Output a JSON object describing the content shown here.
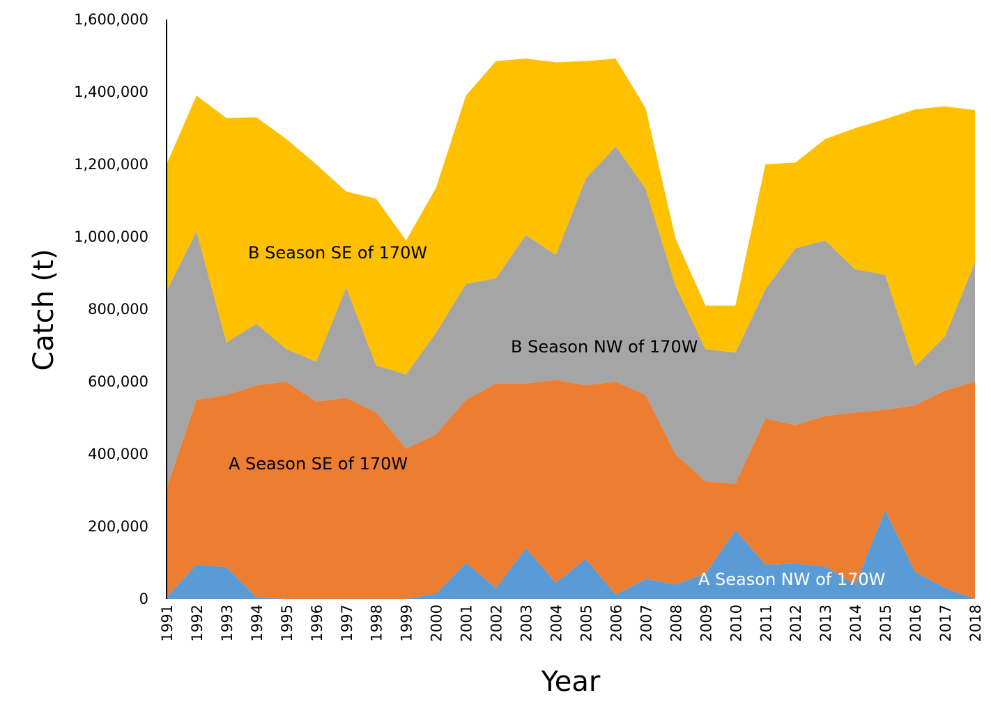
{
  "chart_data": {
    "type": "area",
    "stacked": true,
    "title": "",
    "xlabel": "Year",
    "ylabel": "Catch (t)",
    "ylim": [
      0,
      1600000
    ],
    "yticks": [
      0,
      200000,
      400000,
      600000,
      800000,
      1000000,
      1200000,
      1400000,
      1600000
    ],
    "ytick_labels": [
      "0",
      "200,000",
      "400,000",
      "600,000",
      "800,000",
      "1,000,000",
      "1,200,000",
      "1,400,000",
      "1,600,000"
    ],
    "grid": false,
    "legend": "none (series labeled inside areas)",
    "categories": [
      "1991",
      "1992",
      "1993",
      "1994",
      "1995",
      "1996",
      "1997",
      "1998",
      "1999",
      "2000",
      "2001",
      "2002",
      "2003",
      "2004",
      "2005",
      "2006",
      "2007",
      "2008",
      "2009",
      "2010",
      "2011",
      "2012",
      "2013",
      "2014",
      "2015",
      "2016",
      "2017",
      "2018"
    ],
    "series": [
      {
        "name": "A Season NW of 170W",
        "color": "#5B9BD5",
        "label_color": "#ffffff",
        "values": [
          5000,
          95000,
          88000,
          5000,
          0,
          0,
          0,
          0,
          0,
          15000,
          100000,
          30000,
          140000,
          45000,
          110000,
          12000,
          55000,
          40000,
          70000,
          190000,
          95000,
          97000,
          90000,
          40000,
          245000,
          75000,
          30000,
          0
        ]
      },
      {
        "name": "A Season SE of 170W",
        "color": "#ED7D31",
        "label_color": "#000000",
        "values": [
          300000,
          455000,
          475000,
          585000,
          600000,
          545000,
          555000,
          515000,
          415000,
          440000,
          450000,
          565000,
          455000,
          560000,
          480000,
          588000,
          508000,
          360000,
          255000,
          128000,
          403000,
          383000,
          415000,
          475000,
          277000,
          460000,
          545000,
          600000
        ]
      },
      {
        "name": "B Season NW of 170W",
        "color": "#A5A5A5",
        "label_color": "#000000",
        "values": [
          545000,
          465000,
          145000,
          170000,
          90000,
          110000,
          305000,
          130000,
          205000,
          280000,
          320000,
          290000,
          410000,
          345000,
          570000,
          650000,
          570000,
          465000,
          365000,
          362000,
          357000,
          488000,
          485000,
          395000,
          373000,
          107000,
          150000,
          330000
        ]
      },
      {
        "name": "B Season SE of 170W",
        "color": "#FFC000",
        "label_color": "#000000",
        "values": [
          350000,
          375000,
          620000,
          570000,
          580000,
          545000,
          265000,
          460000,
          370000,
          400000,
          520000,
          600000,
          487000,
          532000,
          325000,
          242000,
          222000,
          130000,
          120000,
          130000,
          345000,
          237000,
          280000,
          390000,
          430000,
          710000,
          635000,
          420000
        ]
      }
    ]
  }
}
